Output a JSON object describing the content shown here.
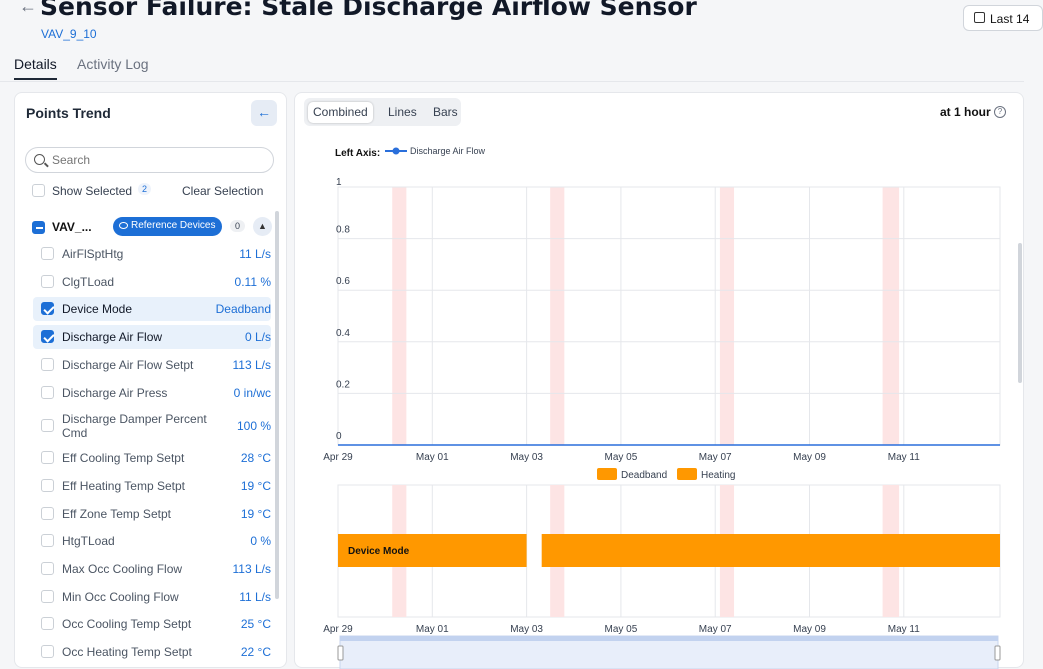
{
  "header": {
    "title": "Sensor Failure: Stale Discharge Airflow Sensor",
    "subtitle": "VAV_9_10",
    "date_range_label": "Last 14"
  },
  "tabs": [
    "Details",
    "Activity Log"
  ],
  "points_trend": {
    "title": "Points Trend",
    "search_placeholder": "Search",
    "show_selected_label": "Show Selected",
    "selected_count": "2",
    "clear_label": "Clear Selection",
    "device": {
      "name": "VAV_...",
      "reference_label": "Reference Devices",
      "reference_count": "0"
    },
    "points": [
      {
        "name": "AirFlSptHtg",
        "value": "11 L/s",
        "checked": false
      },
      {
        "name": "ClgTLoad",
        "value": "0.11 %",
        "checked": false
      },
      {
        "name": "Device Mode",
        "value": "Deadband",
        "checked": true
      },
      {
        "name": "Discharge Air Flow",
        "value": "0 L/s",
        "checked": true
      },
      {
        "name": "Discharge Air Flow Setpt",
        "value": "113 L/s",
        "checked": false
      },
      {
        "name": "Discharge Air Press",
        "value": "0 in/wc",
        "checked": false
      },
      {
        "name": "Discharge Damper Percent Cmd",
        "value": "100 %",
        "checked": false
      },
      {
        "name": "Eff Cooling Temp Setpt",
        "value": "28 °C",
        "checked": false
      },
      {
        "name": "Eff Heating Temp Setpt",
        "value": "19 °C",
        "checked": false
      },
      {
        "name": "Eff Zone Temp Setpt",
        "value": "19 °C",
        "checked": false
      },
      {
        "name": "HtgTLoad",
        "value": "0 %",
        "checked": false
      },
      {
        "name": "Max Occ Cooling Flow",
        "value": "113 L/s",
        "checked": false
      },
      {
        "name": "Min Occ Cooling Flow",
        "value": "11 L/s",
        "checked": false
      },
      {
        "name": "Occ Cooling Temp Setpt",
        "value": "25 °C",
        "checked": false
      },
      {
        "name": "Occ Heating Temp Setpt",
        "value": "22 °C",
        "checked": false
      }
    ]
  },
  "chart_panel": {
    "view_modes": [
      "Combined",
      "Lines",
      "Bars"
    ],
    "active_view": "Combined",
    "interval_label": "at 1 hour",
    "colors": {
      "line": "#2a6fdb",
      "bar": "#ff9800",
      "band": "#fde4e4",
      "grid": "#e5e7eb"
    }
  },
  "chart_data": [
    {
      "type": "line",
      "left_axis_label": "Left Axis:",
      "series": [
        {
          "name": "Discharge Air Flow",
          "values": [
            0,
            0
          ]
        }
      ],
      "x": [
        "Apr 29",
        "May 13"
      ],
      "ylim": [
        0,
        1
      ],
      "y_ticks": [
        "0",
        "0.2",
        "0.4",
        "0.6",
        "0.8",
        "1"
      ],
      "x_ticks": [
        "Apr 29",
        "May 01",
        "May 03",
        "May 05",
        "May 07",
        "May 09",
        "May 11"
      ],
      "x_range_days": [
        0,
        14.04
      ],
      "alert_bands_days": [
        [
          1.15,
          1.45
        ],
        [
          4.5,
          4.8
        ],
        [
          8.1,
          8.4
        ],
        [
          11.55,
          11.9
        ]
      ],
      "grid": true
    },
    {
      "type": "bar",
      "legend": [
        "Deadband",
        "Heating"
      ],
      "row_label": "Device Mode",
      "segments": [
        {
          "state": "Deadband",
          "start_day": 0,
          "end_day": 4.0
        },
        {
          "state": "Deadband",
          "start_day": 4.32,
          "end_day": 14.04
        }
      ],
      "x_ticks": [
        "Apr 29",
        "May 01",
        "May 03",
        "May 05",
        "May 07",
        "May 09",
        "May 11"
      ]
    }
  ]
}
